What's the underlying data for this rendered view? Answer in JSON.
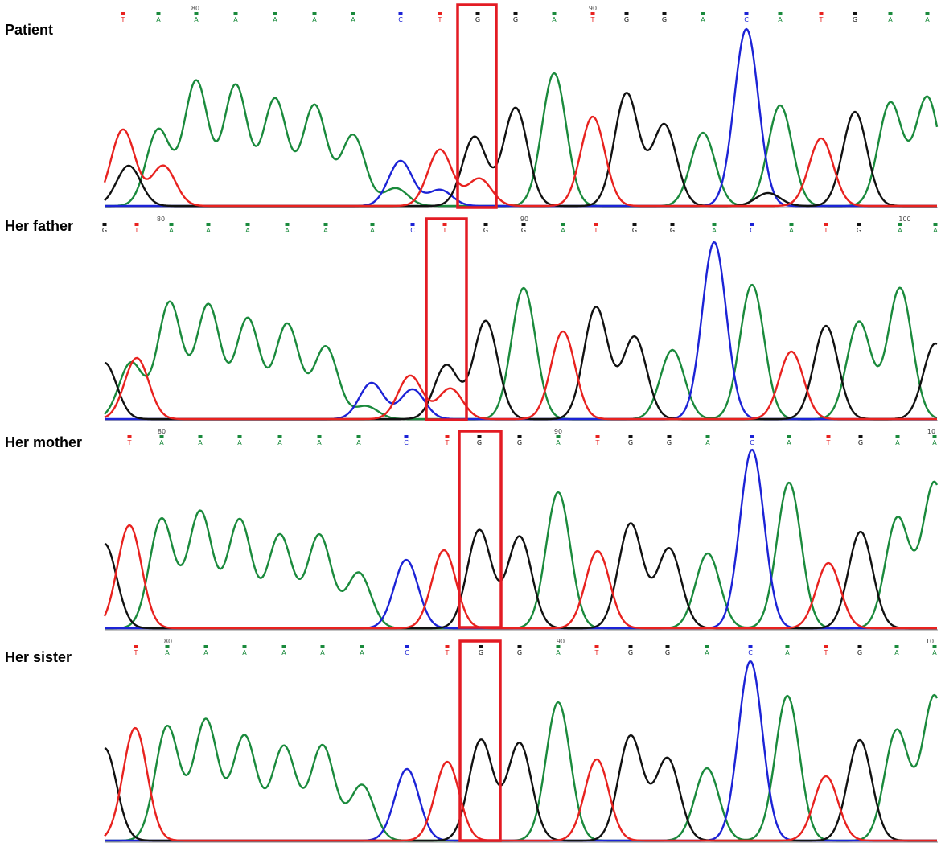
{
  "colors": {
    "A": "#1a8a3c",
    "C": "#1c23d6",
    "G": "#111111",
    "T": "#e8221f",
    "highlight": "#e31b23"
  },
  "panels": [
    {
      "label": "Patient",
      "positions": [
        "80",
        "90"
      ],
      "sequence": [
        "T",
        "A",
        "A",
        "A",
        "A",
        "A",
        "A",
        "C",
        "T",
        "G",
        "G",
        "A",
        "T",
        "G",
        "G",
        "A",
        "C",
        "A",
        "T",
        "G",
        "A",
        "A"
      ],
      "highlight_index": 9
    },
    {
      "label": "Her father",
      "positions": [
        "80",
        "90",
        "100"
      ],
      "sequence": [
        "G",
        "T",
        "A",
        "A",
        "A",
        "A",
        "A",
        "A",
        "C",
        "T",
        "G",
        "G",
        "A",
        "T",
        "G",
        "G",
        "A",
        "C",
        "A",
        "T",
        "G",
        "A",
        "A"
      ],
      "highlight_index": 10
    },
    {
      "label": "Her mother",
      "positions": [
        "80",
        "90",
        "10"
      ],
      "sequence": [
        "T",
        "A",
        "A",
        "A",
        "A",
        "A",
        "A",
        "C",
        "T",
        "G",
        "G",
        "A",
        "T",
        "G",
        "G",
        "A",
        "C",
        "A",
        "T",
        "G",
        "A",
        "A"
      ],
      "highlight_index": 9
    },
    {
      "label": "Her sister",
      "positions": [
        "80",
        "90",
        "10"
      ],
      "sequence": [
        "T",
        "A",
        "A",
        "A",
        "A",
        "A",
        "A",
        "C",
        "T",
        "G",
        "G",
        "A",
        "T",
        "G",
        "G",
        "A",
        "C",
        "A",
        "T",
        "G",
        "A",
        "A"
      ],
      "highlight_index": 9
    }
  ]
}
